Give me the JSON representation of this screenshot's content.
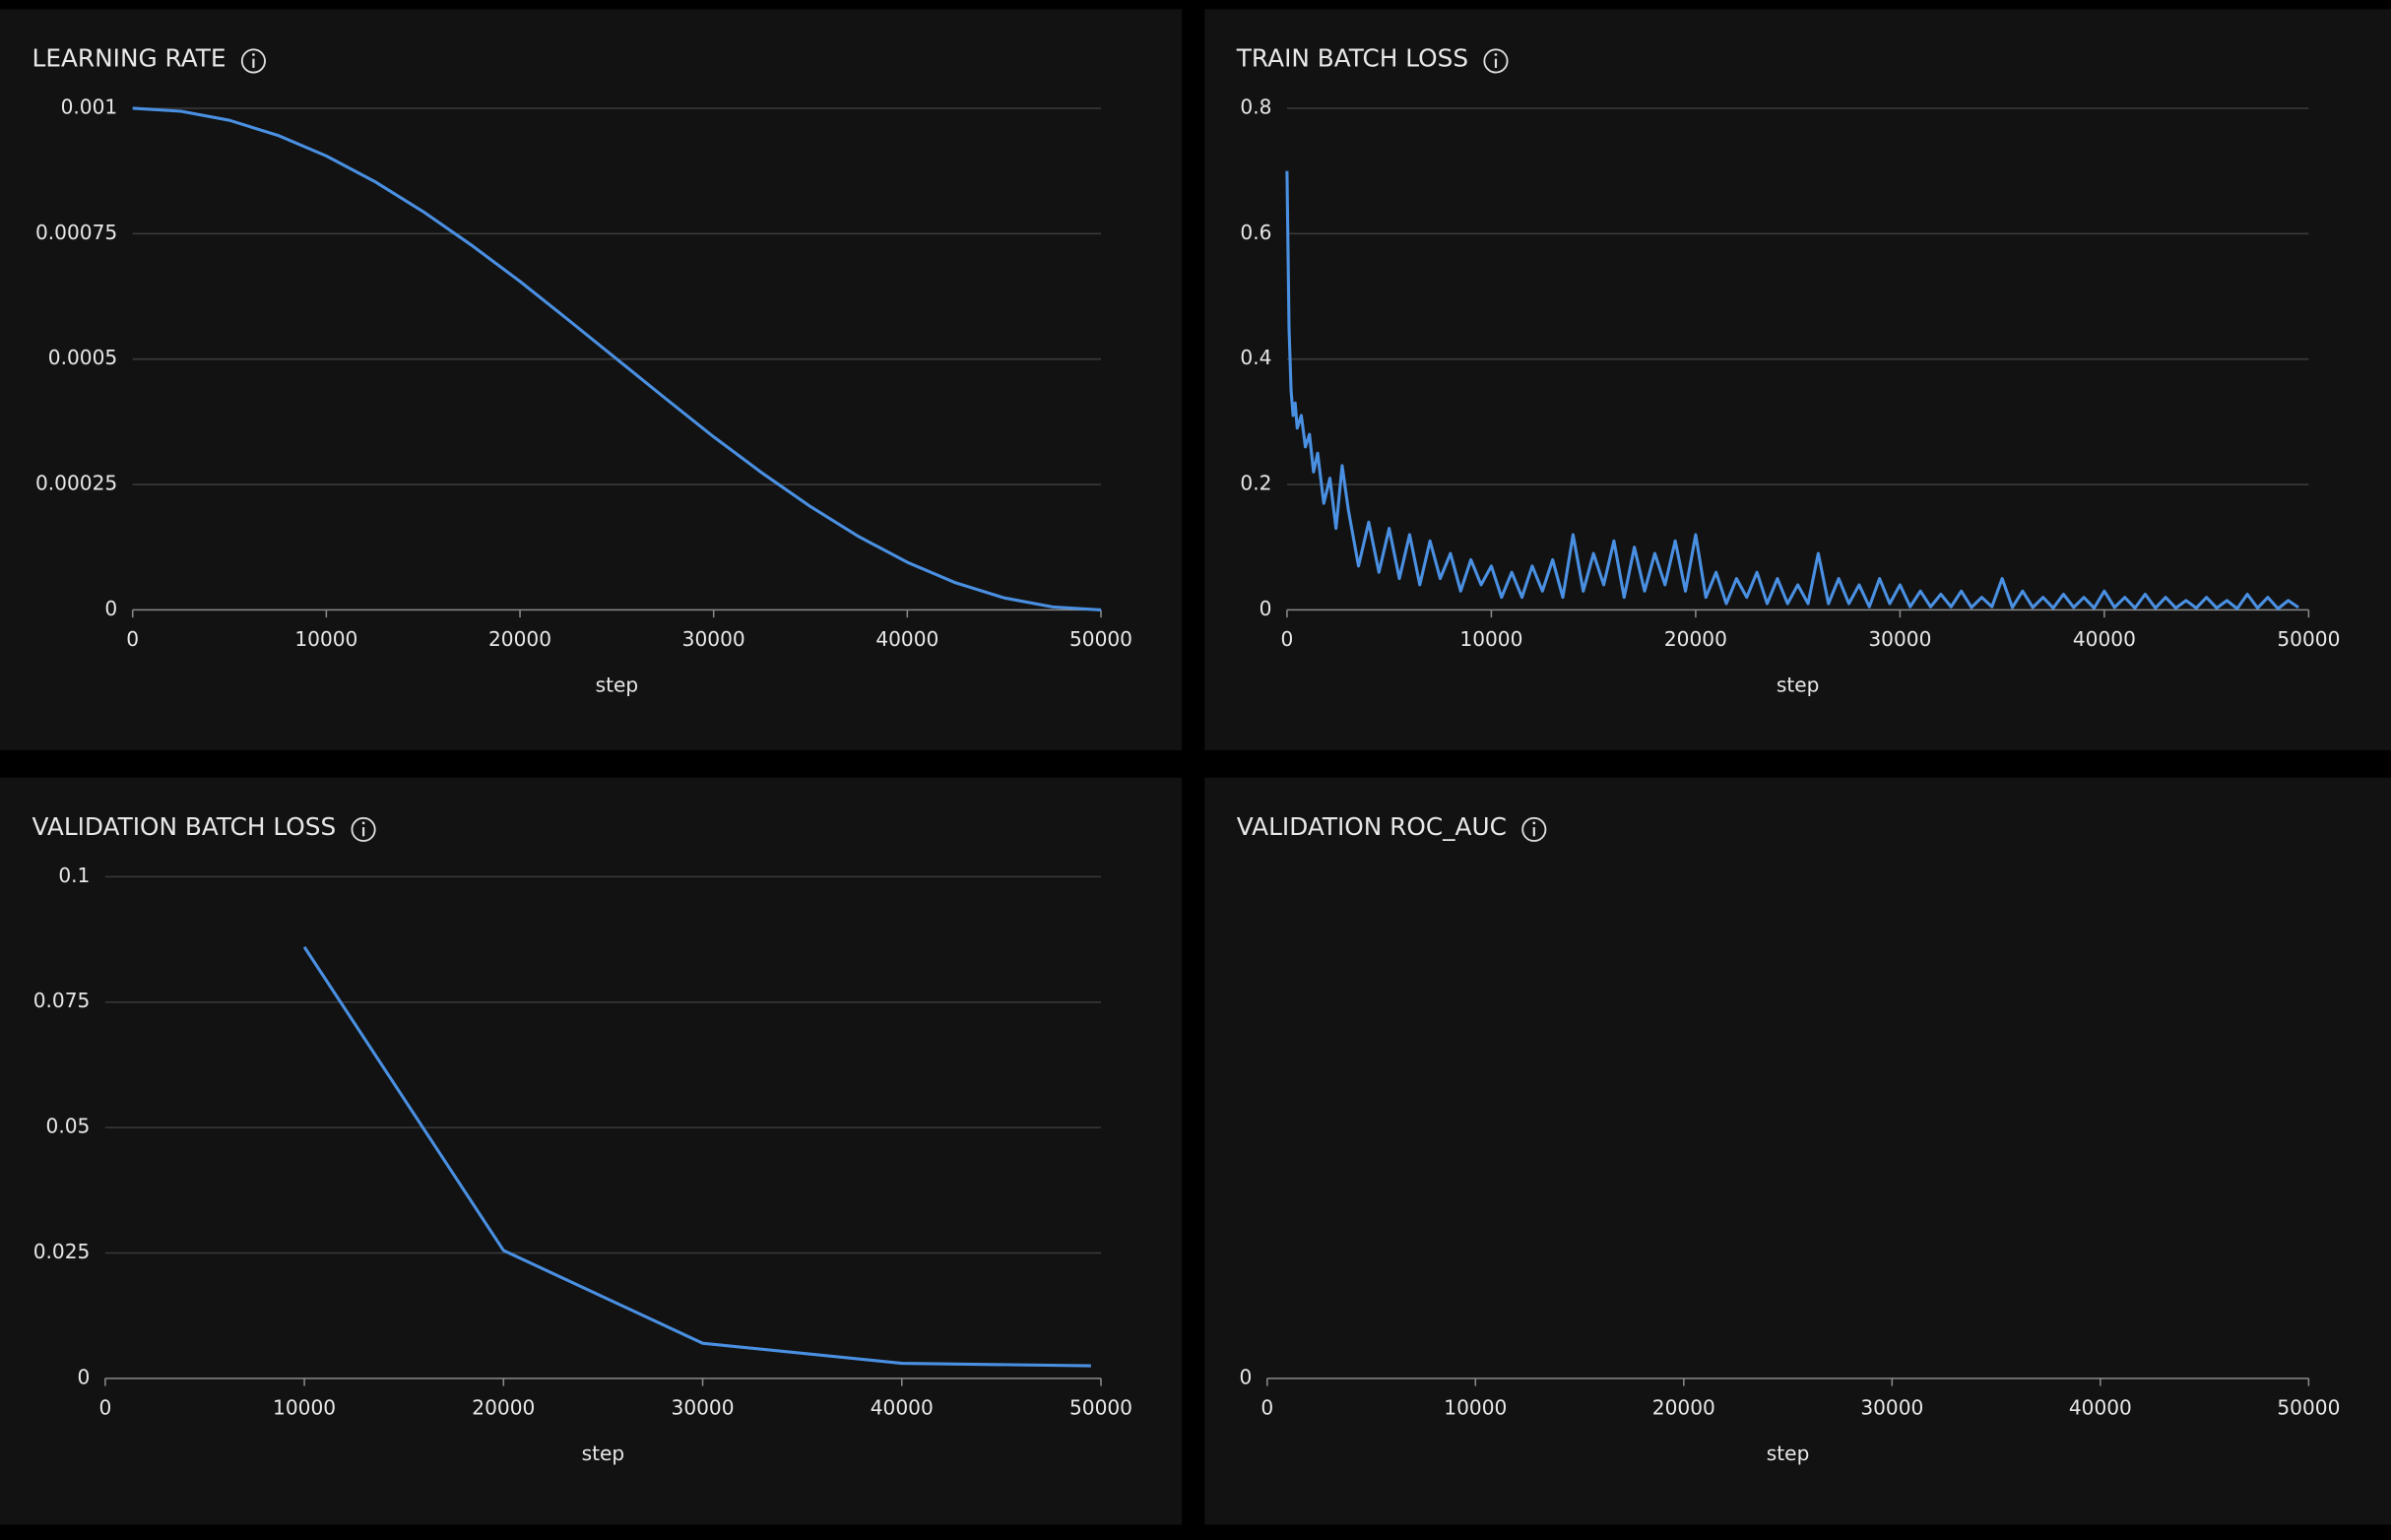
{
  "chart_data": [
    {
      "type": "line",
      "title": "LEARNING RATE",
      "x_label": "step",
      "x": [
        0,
        2500,
        5000,
        7500,
        10000,
        12500,
        15000,
        17500,
        20000,
        22500,
        25000,
        27500,
        30000,
        32500,
        35000,
        37500,
        40000,
        42500,
        45000,
        47500,
        50000
      ],
      "series": [
        {
          "color": "#4a90e2",
          "values": [
            0.001,
            0.000994,
            0.000976,
            0.000946,
            0.000905,
            0.000854,
            0.000794,
            0.000727,
            0.000655,
            0.000578,
            0.0005,
            0.000422,
            0.000345,
            0.000273,
            0.000206,
            0.000146,
            9.5e-05,
            5.4e-05,
            2.4e-05,
            6e-06,
            0
          ]
        }
      ],
      "xlim": [
        0,
        50000
      ],
      "xticks": [
        0,
        10000,
        20000,
        30000,
        40000,
        50000
      ],
      "ylim": [
        0,
        0.001
      ],
      "yticks": [
        0,
        0.00025,
        0.0005,
        0.00075,
        0.001
      ]
    },
    {
      "type": "line",
      "title": "TRAIN BATCH LOSS",
      "x_label": "step",
      "x": [
        0,
        100,
        200,
        300,
        400,
        500,
        700,
        900,
        1100,
        1300,
        1500,
        1800,
        2100,
        2400,
        2700,
        3000,
        3500,
        4000,
        4500,
        5000,
        5500,
        6000,
        6500,
        7000,
        7500,
        8000,
        8500,
        9000,
        9500,
        10000,
        10500,
        11000,
        11500,
        12000,
        12500,
        13000,
        13500,
        14000,
        14500,
        15000,
        15500,
        16000,
        16500,
        17000,
        17500,
        18000,
        18500,
        19000,
        19500,
        20000,
        20500,
        21000,
        21500,
        22000,
        22500,
        23000,
        23500,
        24000,
        24500,
        25000,
        25500,
        26000,
        26500,
        27000,
        27500,
        28000,
        28500,
        29000,
        29500,
        30000,
        30500,
        31000,
        31500,
        32000,
        32500,
        33000,
        33500,
        34000,
        34500,
        35000,
        35500,
        36000,
        36500,
        37000,
        37500,
        38000,
        38500,
        39000,
        39500,
        40000,
        40500,
        41000,
        41500,
        42000,
        42500,
        43000,
        43500,
        44000,
        44500,
        45000,
        45500,
        46000,
        46500,
        47000,
        47500,
        48000,
        48500,
        49000,
        49500
      ],
      "series": [
        {
          "color": "#4a90e2",
          "values": [
            0.7,
            0.45,
            0.35,
            0.31,
            0.33,
            0.29,
            0.31,
            0.26,
            0.28,
            0.22,
            0.25,
            0.17,
            0.21,
            0.13,
            0.23,
            0.16,
            0.07,
            0.14,
            0.06,
            0.13,
            0.05,
            0.12,
            0.04,
            0.11,
            0.05,
            0.09,
            0.03,
            0.08,
            0.04,
            0.07,
            0.02,
            0.06,
            0.02,
            0.07,
            0.03,
            0.08,
            0.02,
            0.12,
            0.03,
            0.09,
            0.04,
            0.11,
            0.02,
            0.1,
            0.03,
            0.09,
            0.04,
            0.11,
            0.03,
            0.12,
            0.02,
            0.06,
            0.01,
            0.05,
            0.02,
            0.06,
            0.01,
            0.05,
            0.01,
            0.04,
            0.01,
            0.09,
            0.01,
            0.05,
            0.01,
            0.04,
            0.005,
            0.05,
            0.01,
            0.04,
            0.005,
            0.03,
            0.005,
            0.025,
            0.005,
            0.03,
            0.004,
            0.02,
            0.005,
            0.05,
            0.004,
            0.03,
            0.004,
            0.02,
            0.003,
            0.025,
            0.004,
            0.02,
            0.003,
            0.03,
            0.004,
            0.02,
            0.003,
            0.025,
            0.003,
            0.02,
            0.003,
            0.015,
            0.003,
            0.02,
            0.003,
            0.015,
            0.002,
            0.025,
            0.003,
            0.02,
            0.002,
            0.015,
            0.004
          ]
        }
      ],
      "xlim": [
        0,
        50000
      ],
      "xticks": [
        0,
        10000,
        20000,
        30000,
        40000,
        50000
      ],
      "ylim": [
        0,
        0.8
      ],
      "yticks": [
        0,
        0.2,
        0.4,
        0.6,
        0.8
      ]
    },
    {
      "type": "line",
      "title": "VALIDATION BATCH LOSS",
      "x_label": "step",
      "x": [
        10000,
        20000,
        30000,
        40000,
        49500
      ],
      "series": [
        {
          "color": "#4a90e2",
          "values": [
            0.086,
            0.0255,
            0.007,
            0.003,
            0.0025
          ]
        }
      ],
      "xlim": [
        0,
        50000
      ],
      "xticks": [
        0,
        10000,
        20000,
        30000,
        40000,
        50000
      ],
      "ylim": [
        0,
        0.1
      ],
      "yticks": [
        0,
        0.025,
        0.05,
        0.075,
        0.1
      ]
    },
    {
      "type": "line",
      "title": "VALIDATION ROC_AUC",
      "x_label": "step",
      "xlim": [
        0,
        50000
      ],
      "xticks": [
        0,
        10000,
        20000,
        30000,
        40000,
        50000
      ],
      "yticks": [
        0
      ]
    }
  ]
}
